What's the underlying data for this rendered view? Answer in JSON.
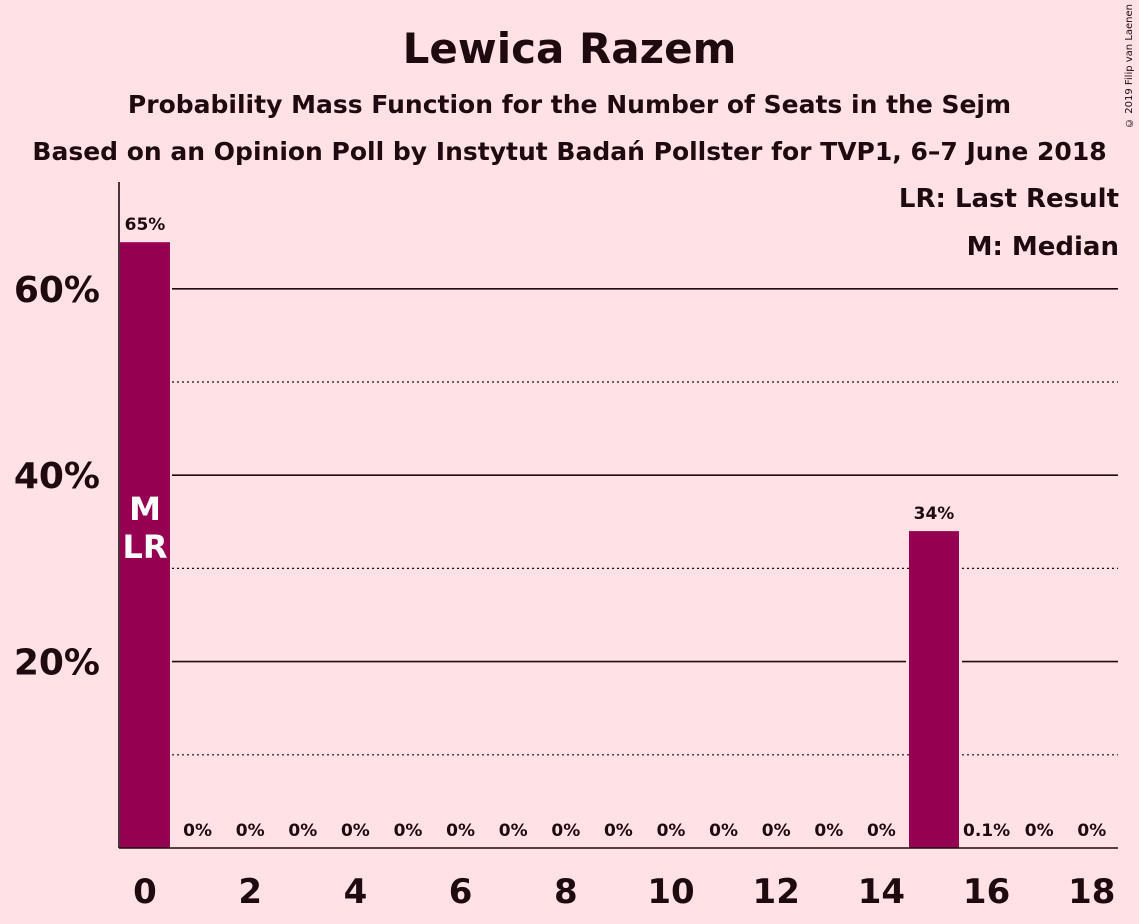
{
  "header": {
    "title": "Lewica Razem",
    "subtitle": "Probability Mass Function for the Number of Seats in the Sejm",
    "subtitle2": "Based on an Opinion Poll by Instytut Badań Pollster for TVP1, 6–7 June 2018",
    "copyright": "© 2019 Filip van Laenen"
  },
  "legend": {
    "last_result": "LR: Last Result",
    "median": "M: Median"
  },
  "colors": {
    "bar": "#960050",
    "background": "#ffe1e6",
    "text": "#1f0a0f"
  },
  "chart_data": {
    "type": "bar",
    "categories": [
      0,
      1,
      2,
      3,
      4,
      5,
      6,
      7,
      8,
      9,
      10,
      11,
      12,
      13,
      14,
      15,
      16,
      17,
      18
    ],
    "values": [
      65,
      0,
      0,
      0,
      0,
      0,
      0,
      0,
      0,
      0,
      0,
      0,
      0,
      0,
      0,
      34,
      0.1,
      0,
      0
    ],
    "data_labels": [
      "65%",
      "0%",
      "0%",
      "0%",
      "0%",
      "0%",
      "0%",
      "0%",
      "0%",
      "0%",
      "0%",
      "0%",
      "0%",
      "0%",
      "0%",
      "34%",
      "0.1%",
      "0%",
      "0%"
    ],
    "x_ticks": [
      0,
      2,
      4,
      6,
      8,
      10,
      12,
      14,
      16,
      18
    ],
    "x_tick_labels": [
      "0",
      "2",
      "4",
      "6",
      "8",
      "10",
      "12",
      "14",
      "16",
      "18"
    ],
    "y_ticks": [
      20,
      40,
      60
    ],
    "y_tick_labels": [
      "20%",
      "40%",
      "60%"
    ],
    "ylim": [
      0,
      71
    ],
    "xlabel": "",
    "ylabel": "",
    "median_seat": 0,
    "last_result_seat": 0,
    "median_marker": "M",
    "last_result_marker": "LR"
  }
}
